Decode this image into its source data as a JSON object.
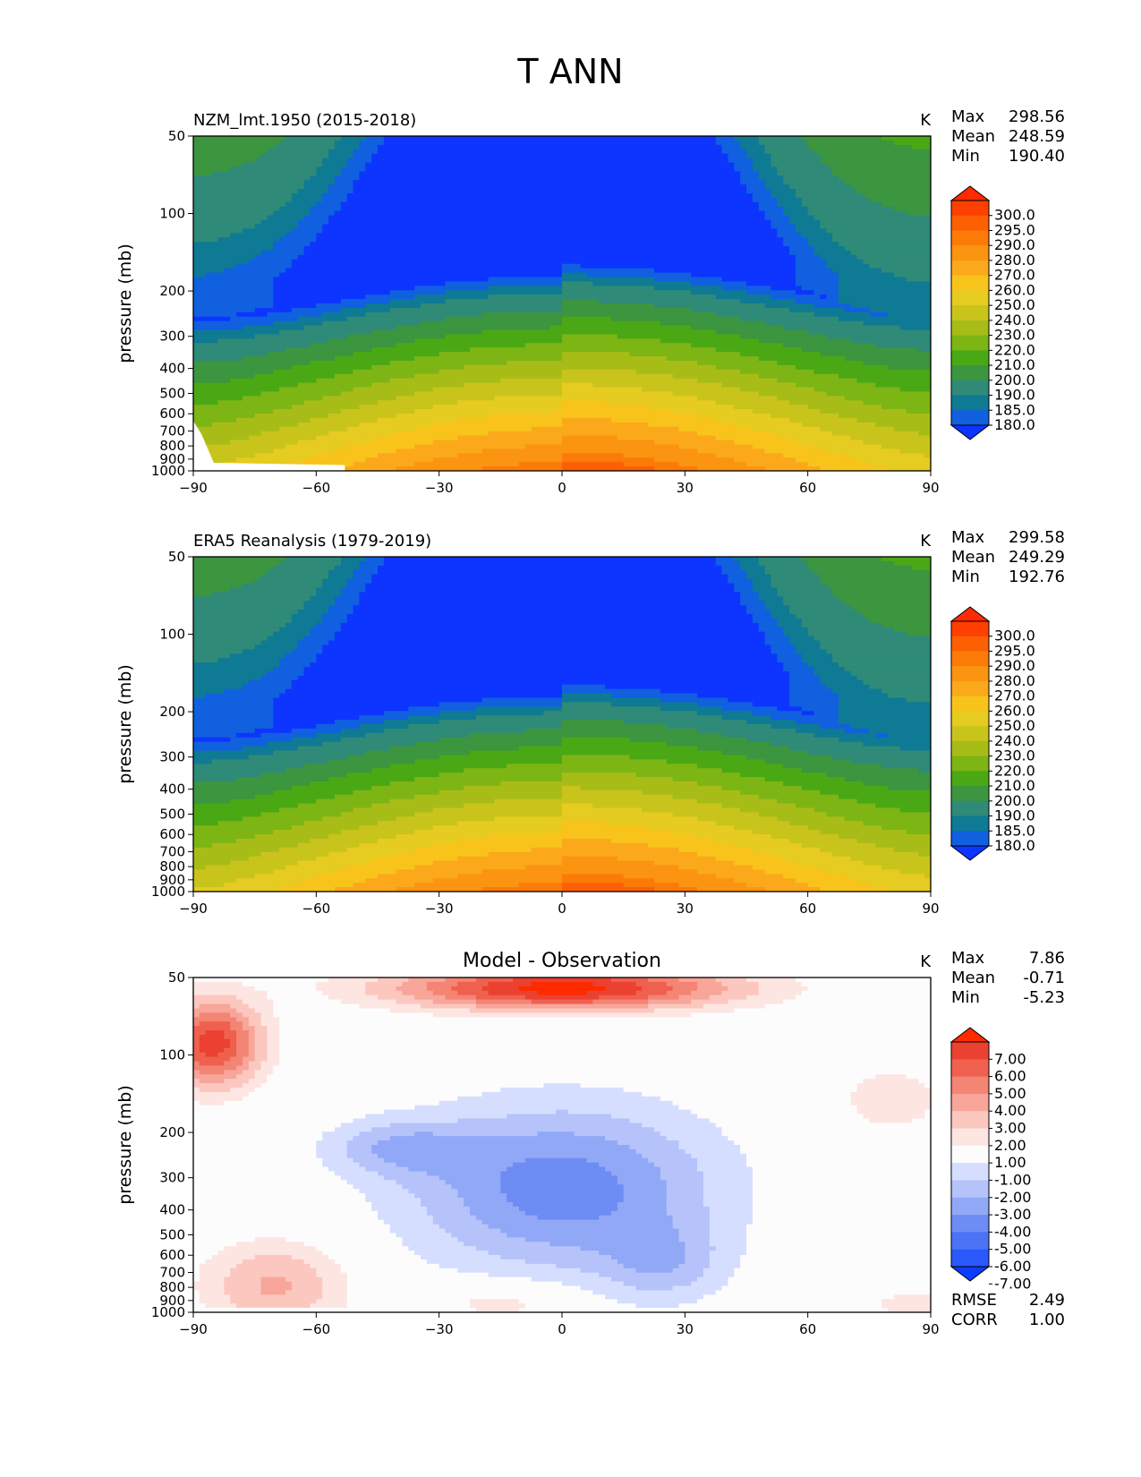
{
  "title": "T ANN",
  "colors": {
    "abs_levels": [
      "#0d35ff",
      "#1060e0",
      "#0f7a94",
      "#2f8a78",
      "#3c953f",
      "#4aa815",
      "#7db514",
      "#a8bc18",
      "#c8c41c",
      "#e6cb20",
      "#f8c41c",
      "#fba91a",
      "#fb9410",
      "#fc7b08",
      "#fc6003",
      "#fd3f01",
      "#ff2a00"
    ],
    "diff_levels": [
      "#0b3cff",
      "#2a58fb",
      "#4c72f6",
      "#6d8cf4",
      "#91a8f7",
      "#b5c3fa",
      "#d6deff",
      "#fcfcfc",
      "#fde5e2",
      "#fbc7bf",
      "#f8a59a",
      "#f48474",
      "#ef604f",
      "#ea4130",
      "#ff2a00"
    ]
  },
  "chart_data": [
    {
      "type": "contour",
      "id": "model",
      "title_left": "NZM_lmt.1950 (2015-2018)",
      "title_center": "",
      "units": "K",
      "xlabel": "",
      "ylabel": "pressure (mb)",
      "x_ticks": [
        "−90",
        "−60",
        "−30",
        "0",
        "30",
        "60",
        "90"
      ],
      "y_ticks": [
        "50",
        "100",
        "200",
        "300",
        "400",
        "500",
        "600",
        "700",
        "800",
        "900",
        "1000"
      ],
      "xlim": [
        -90,
        90
      ],
      "ylim": [
        1000,
        50
      ],
      "stats": [
        {
          "label": "Max",
          "value": "298.56"
        },
        {
          "label": "Mean",
          "value": "248.59"
        },
        {
          "label": "Min",
          "value": "190.40"
        }
      ],
      "colorbar_ticks": [
        "300.0",
        "295.0",
        "290.0",
        "280.0",
        "270.0",
        "260.0",
        "250.0",
        "240.0",
        "230.0",
        "220.0",
        "210.0",
        "200.0",
        "190.0",
        "185.0",
        "180.0"
      ],
      "colorbar_levels": [
        180,
        185,
        190,
        200,
        210,
        220,
        230,
        240,
        250,
        260,
        270,
        280,
        290,
        295,
        300
      ],
      "footer_stats": []
    },
    {
      "type": "contour",
      "id": "obs",
      "title_left": "ERA5 Reanalysis (1979-2019)",
      "title_center": "",
      "units": "K",
      "xlabel": "",
      "ylabel": "pressure (mb)",
      "x_ticks": [
        "−90",
        "−60",
        "−30",
        "0",
        "30",
        "60",
        "90"
      ],
      "y_ticks": [
        "50",
        "100",
        "200",
        "300",
        "400",
        "500",
        "600",
        "700",
        "800",
        "900",
        "1000"
      ],
      "xlim": [
        -90,
        90
      ],
      "ylim": [
        1000,
        50
      ],
      "stats": [
        {
          "label": "Max",
          "value": "299.58"
        },
        {
          "label": "Mean",
          "value": "249.29"
        },
        {
          "label": "Min",
          "value": "192.76"
        }
      ],
      "colorbar_ticks": [
        "300.0",
        "295.0",
        "290.0",
        "280.0",
        "270.0",
        "260.0",
        "250.0",
        "240.0",
        "230.0",
        "220.0",
        "210.0",
        "200.0",
        "190.0",
        "185.0",
        "180.0"
      ],
      "colorbar_levels": [
        180,
        185,
        190,
        200,
        210,
        220,
        230,
        240,
        250,
        260,
        270,
        280,
        290,
        295,
        300
      ],
      "footer_stats": []
    },
    {
      "type": "contour",
      "id": "diff",
      "title_left": "",
      "title_center": "Model - Observation",
      "units": "K",
      "xlabel": "",
      "ylabel": "pressure (mb)",
      "x_ticks": [
        "−90",
        "−60",
        "−30",
        "0",
        "30",
        "60",
        "90"
      ],
      "y_ticks": [
        "50",
        "100",
        "200",
        "300",
        "400",
        "500",
        "600",
        "700",
        "800",
        "900",
        "1000"
      ],
      "xlim": [
        -90,
        90
      ],
      "ylim": [
        1000,
        50
      ],
      "stats": [
        {
          "label": "Max",
          "value": "7.86"
        },
        {
          "label": "Mean",
          "value": "-0.71"
        },
        {
          "label": "Min",
          "value": "-5.23"
        }
      ],
      "colorbar_ticks": [
        "7.00",
        "6.00",
        "5.00",
        "4.00",
        "3.00",
        "2.00",
        "1.00",
        "-1.00",
        "-2.00",
        "-3.00",
        "-4.00",
        "-5.00",
        "-6.00",
        "-7.00"
      ],
      "colorbar_levels": [
        -7,
        -6,
        -5,
        -4,
        -3,
        -2,
        -1,
        1,
        2,
        3,
        4,
        5,
        6,
        7
      ],
      "footer_stats": [
        {
          "label": "RMSE",
          "value": "2.49"
        },
        {
          "label": "CORR",
          "value": "1.00"
        }
      ]
    }
  ]
}
